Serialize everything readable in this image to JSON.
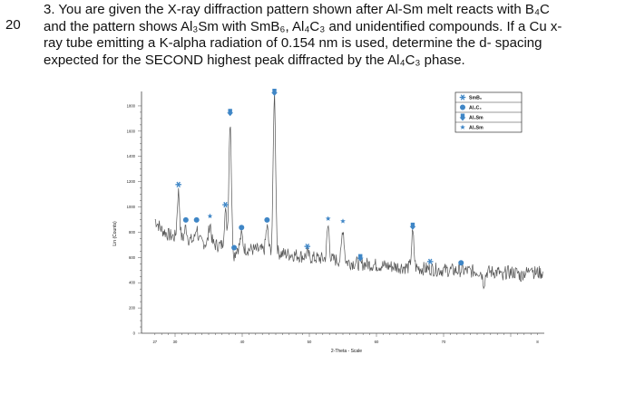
{
  "question": {
    "number": "20",
    "lines": [
      "3. You are given the X-ray diffraction pattern shown after Al-Sm melt reacts with B₄C",
      "and the pattern shows Al₃Sm with SmB₆, Al₄C₃ and unidentified compounds. If a Cu x-",
      "ray tube emitting a K-alpha radiation of 0.154 nm is used, determine the d- spacing",
      "expected for the SECOND highest peak diffracted by the Al₄C₃ phase."
    ]
  },
  "chart_data": {
    "type": "line",
    "xlabel": "2-Theta - Scale",
    "ylabel": "Lin (Counts)",
    "xlim": [
      25,
      85
    ],
    "ylim": [
      0,
      1900
    ],
    "x_ticks": [
      "27",
      "30",
      "40",
      "50",
      "60",
      "70",
      "8"
    ],
    "x_tick_values": [
      27,
      30,
      40,
      50,
      60,
      70,
      84
    ],
    "y_ticks": [
      "0",
      "200",
      "400",
      "600",
      "800",
      "1000",
      "1200",
      "1400",
      "1600",
      "1800"
    ],
    "series_color": "#555555",
    "marker_color": "#3f86c6",
    "legend": [
      {
        "label": "SmB₆",
        "marker": "asterisk"
      },
      {
        "label": "Al₄C₃",
        "marker": "circle"
      },
      {
        "label": "Al₃Sm",
        "marker": "arrow-down"
      },
      {
        "label": "Al₄Sm",
        "marker": "star"
      }
    ],
    "baseline": [
      [
        27,
        900
      ],
      [
        28,
        820
      ],
      [
        29,
        780
      ],
      [
        30,
        760
      ],
      [
        32,
        740
      ],
      [
        34,
        720
      ],
      [
        36,
        700
      ],
      [
        38,
        690
      ],
      [
        40,
        670
      ],
      [
        42,
        660
      ],
      [
        44,
        650
      ],
      [
        46,
        630
      ],
      [
        48,
        620
      ],
      [
        50,
        600
      ],
      [
        52,
        590
      ],
      [
        54,
        580
      ],
      [
        56,
        560
      ],
      [
        58,
        550
      ],
      [
        60,
        540
      ],
      [
        62,
        530
      ],
      [
        65,
        520
      ],
      [
        70,
        500
      ],
      [
        75,
        490
      ],
      [
        80,
        480
      ],
      [
        84.8,
        480
      ]
    ],
    "peaks": [
      {
        "x": 30.5,
        "y": 1120,
        "marker": "asterisk"
      },
      {
        "x": 31.6,
        "y": 840,
        "marker": "circle"
      },
      {
        "x": 33.2,
        "y": 840,
        "marker": "circle"
      },
      {
        "x": 35.2,
        "y": 870,
        "marker": "star"
      },
      {
        "x": 37.5,
        "y": 960,
        "marker": "asterisk"
      },
      {
        "x": 38.2,
        "y": 1690,
        "marker": "arrow-down"
      },
      {
        "x": 38.8,
        "y": 620,
        "marker": "circle"
      },
      {
        "x": 39.9,
        "y": 780,
        "marker": "circle"
      },
      {
        "x": 43.7,
        "y": 840,
        "marker": "circle"
      },
      {
        "x": 44.8,
        "y": 1900,
        "marker": "arrow-down"
      },
      {
        "x": 49.7,
        "y": 630,
        "marker": "asterisk"
      },
      {
        "x": 52.8,
        "y": 850,
        "marker": "star"
      },
      {
        "x": 55.0,
        "y": 830,
        "marker": "star"
      },
      {
        "x": 57.6,
        "y": 540,
        "marker": "arrow-down"
      },
      {
        "x": 65.4,
        "y": 790,
        "marker": "arrow-down"
      },
      {
        "x": 68.0,
        "y": 510,
        "marker": "asterisk"
      },
      {
        "x": 72.6,
        "y": 500,
        "marker": "circle"
      },
      {
        "x": 76.0,
        "y": 400,
        "marker": null
      },
      {
        "x": 78.8,
        "y": 430,
        "marker": null
      },
      {
        "x": 81.5,
        "y": 450,
        "marker": null
      },
      {
        "x": 83.0,
        "y": 550,
        "marker": null
      }
    ]
  }
}
